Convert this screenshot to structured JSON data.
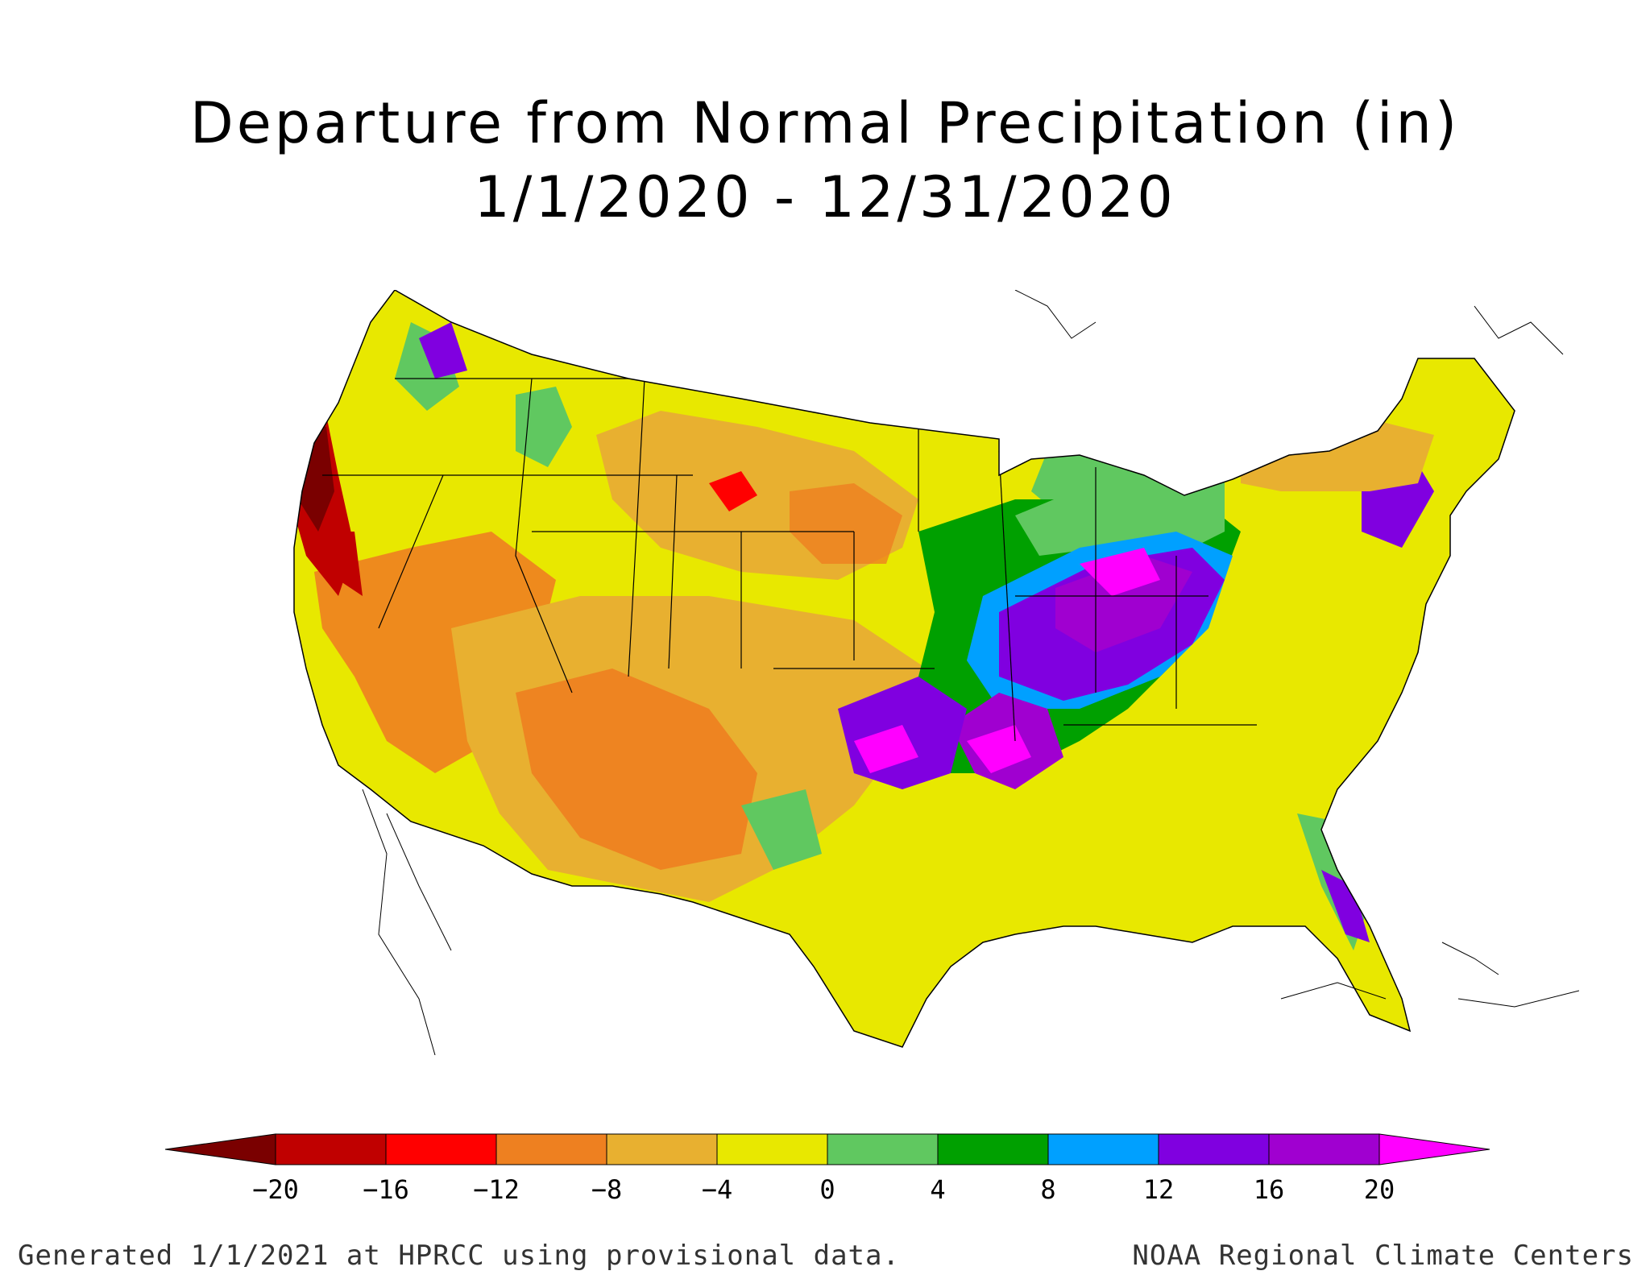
{
  "title": {
    "line1": "Departure from Normal Precipitation (in)",
    "line2": "1/1/2020 - 12/31/2020"
  },
  "legend": {
    "units": "in",
    "ticks": [
      "−20",
      "−16",
      "−12",
      "−8",
      "−4",
      "0",
      "4",
      "8",
      "12",
      "16",
      "20"
    ],
    "colors": [
      "#7a0000",
      "#c00000",
      "#ff0000",
      "#ee8020",
      "#e8b030",
      "#e8e800",
      "#60c860",
      "#00a000",
      "#00a0ff",
      "#8000e0",
      "#a000d0",
      "#ff00ff"
    ]
  },
  "footer": {
    "left": "Generated 1/1/2021 at HPRCC using provisional data.",
    "right": "NOAA Regional Climate Centers"
  }
}
